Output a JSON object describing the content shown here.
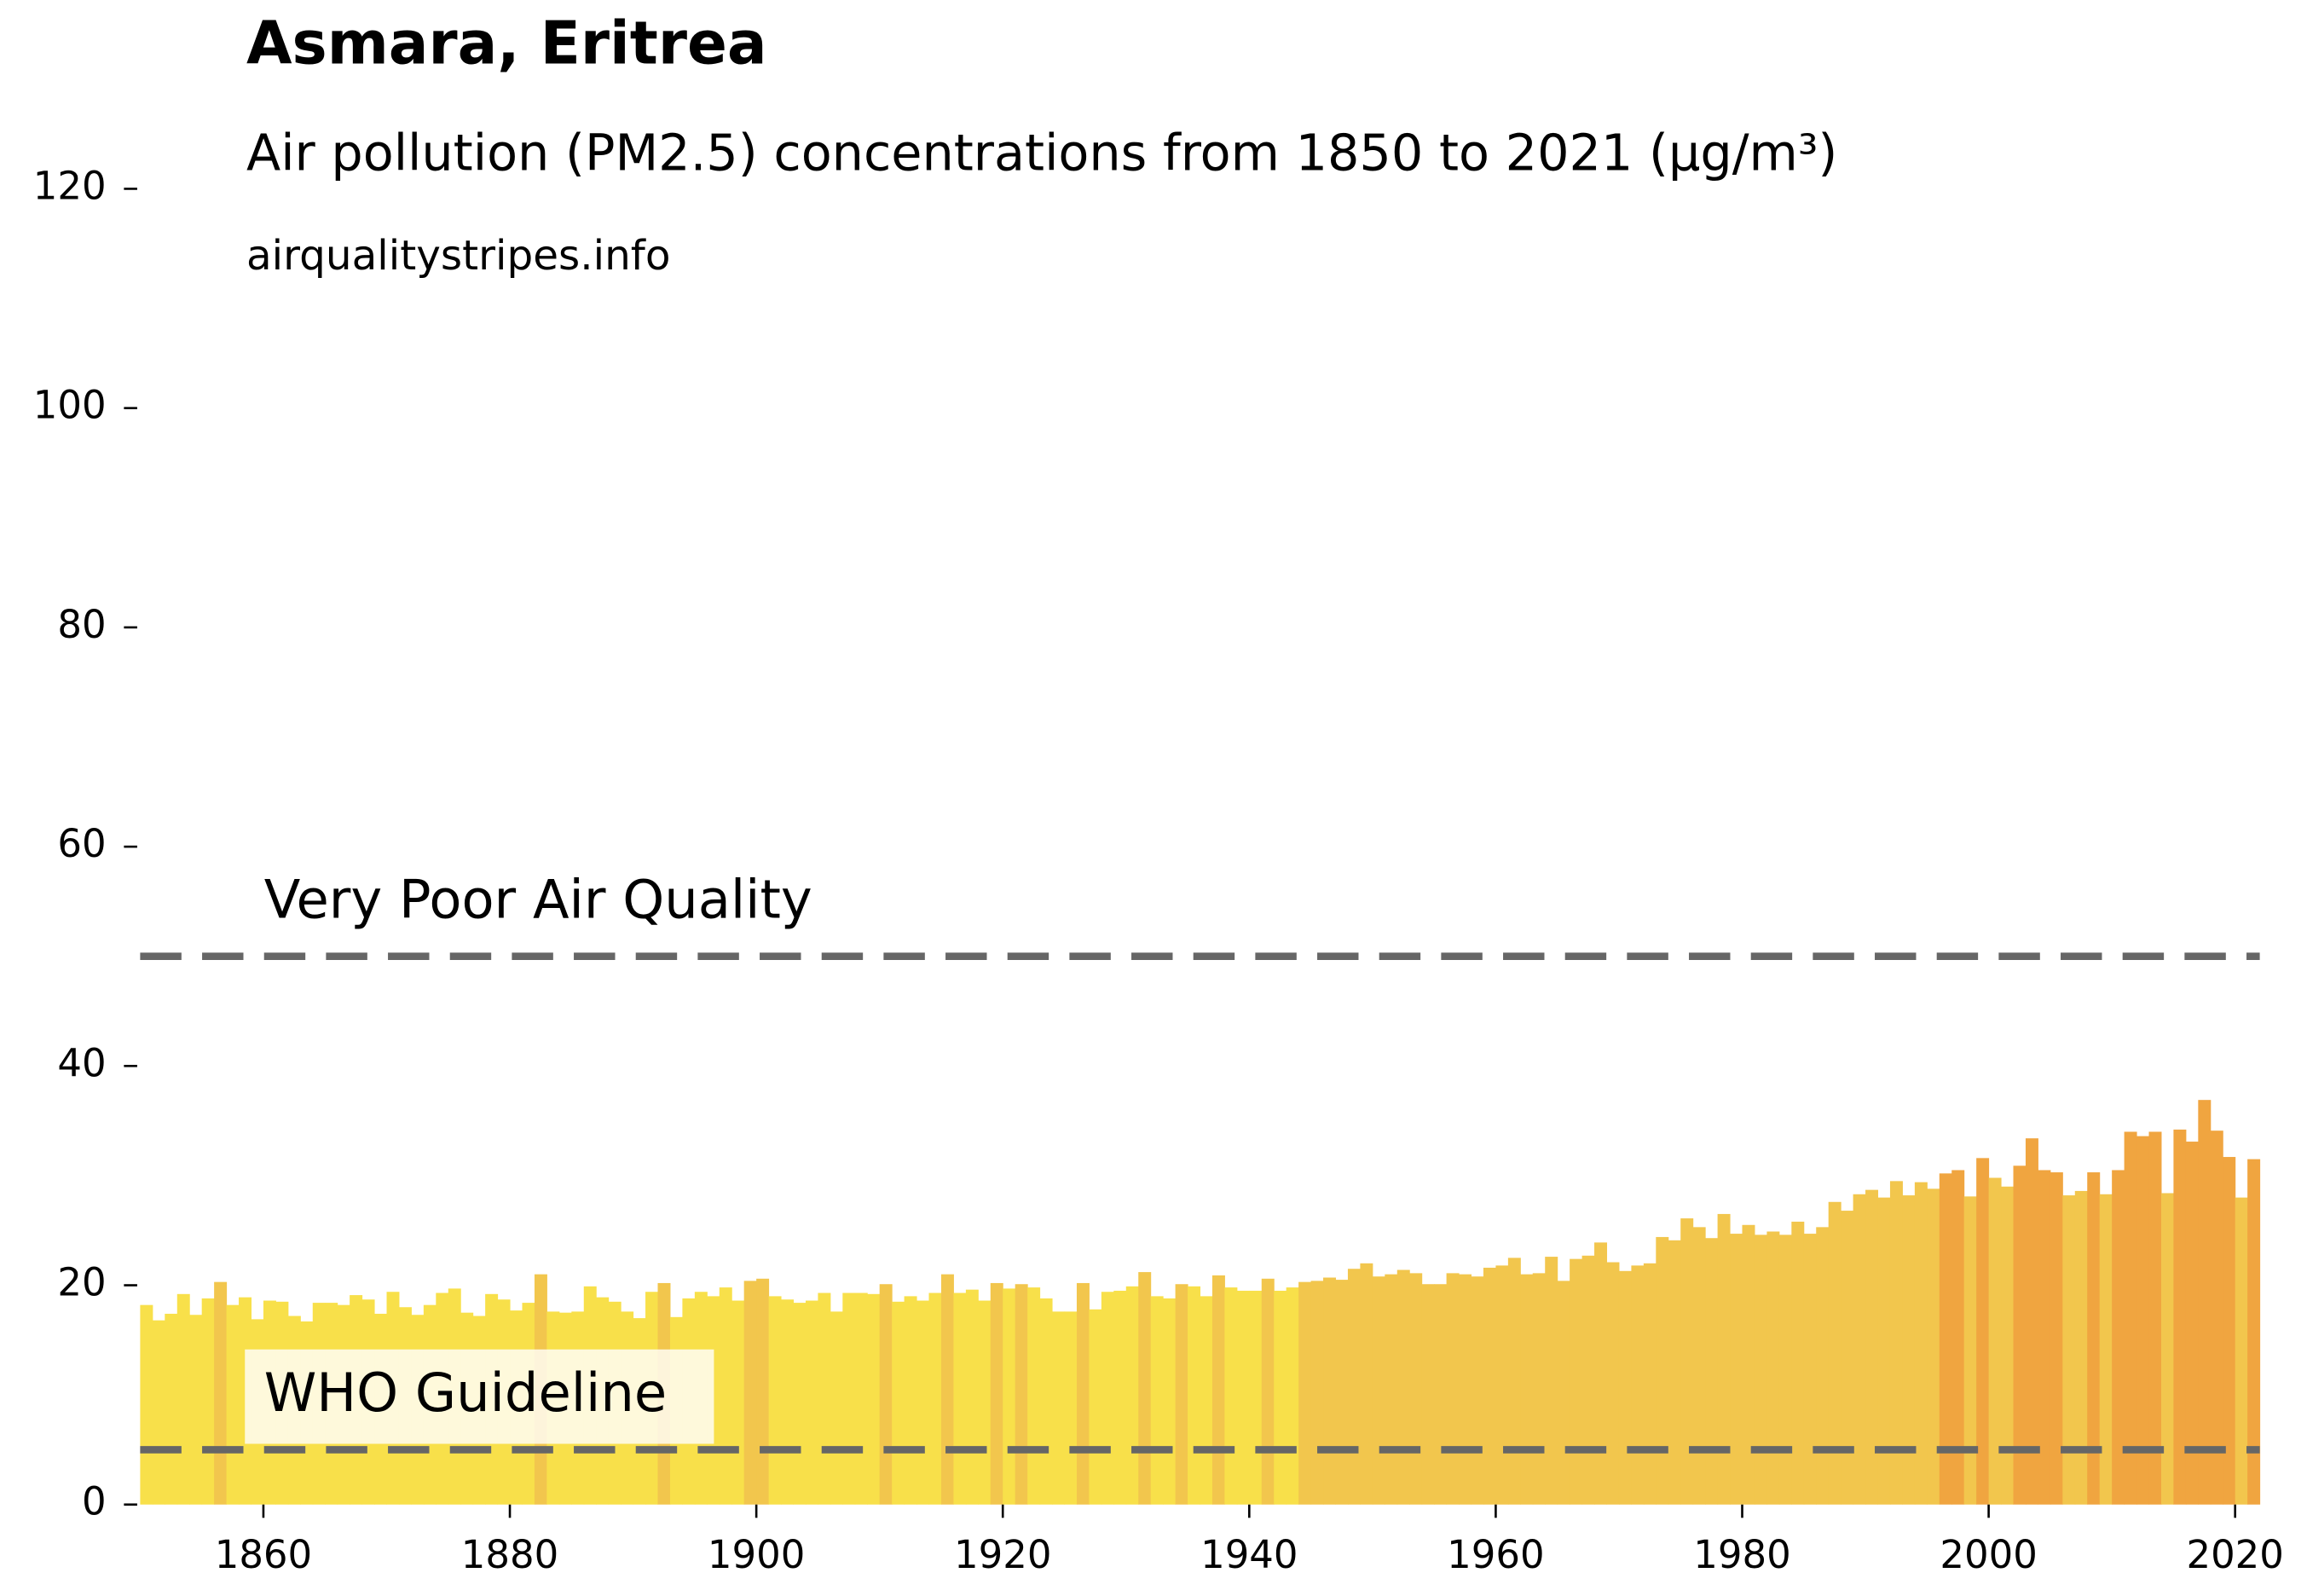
{
  "chart_data": {
    "type": "bar",
    "title": "Asmara, Eritrea",
    "subtitle": "Air pollution (PM2.5) concentrations from 1850 to 2021 (µg/m³)",
    "source": "airqualitystripes.info",
    "x": [
      1850,
      1851,
      1852,
      1853,
      1854,
      1855,
      1856,
      1857,
      1858,
      1859,
      1860,
      1861,
      1862,
      1863,
      1864,
      1865,
      1866,
      1867,
      1868,
      1869,
      1870,
      1871,
      1872,
      1873,
      1874,
      1875,
      1876,
      1877,
      1878,
      1879,
      1880,
      1881,
      1882,
      1883,
      1884,
      1885,
      1886,
      1887,
      1888,
      1889,
      1890,
      1891,
      1892,
      1893,
      1894,
      1895,
      1896,
      1897,
      1898,
      1899,
      1900,
      1901,
      1902,
      1903,
      1904,
      1905,
      1906,
      1907,
      1908,
      1909,
      1910,
      1911,
      1912,
      1913,
      1914,
      1915,
      1916,
      1917,
      1918,
      1919,
      1920,
      1921,
      1922,
      1923,
      1924,
      1925,
      1926,
      1927,
      1928,
      1929,
      1930,
      1931,
      1932,
      1933,
      1934,
      1935,
      1936,
      1937,
      1938,
      1939,
      1940,
      1941,
      1942,
      1943,
      1944,
      1945,
      1946,
      1947,
      1948,
      1949,
      1950,
      1951,
      1952,
      1953,
      1954,
      1955,
      1956,
      1957,
      1958,
      1959,
      1960,
      1961,
      1962,
      1963,
      1964,
      1965,
      1966,
      1967,
      1968,
      1969,
      1970,
      1971,
      1972,
      1973,
      1974,
      1975,
      1976,
      1977,
      1978,
      1979,
      1980,
      1981,
      1982,
      1983,
      1984,
      1985,
      1986,
      1987,
      1988,
      1989,
      1990,
      1991,
      1992,
      1993,
      1994,
      1995,
      1996,
      1997,
      1998,
      1999,
      2000,
      2001,
      2002,
      2003,
      2004,
      2005,
      2006,
      2007,
      2008,
      2009,
      2010,
      2011,
      2012,
      2013,
      2014,
      2015,
      2016,
      2017,
      2018,
      2019,
      2020,
      2021
    ],
    "values": [
      18.2,
      16.8,
      17.4,
      19.2,
      17.3,
      18.8,
      20.3,
      18.2,
      18.9,
      16.9,
      18.6,
      18.5,
      17.2,
      16.7,
      18.4,
      18.4,
      18.2,
      19.1,
      18.7,
      17.4,
      19.4,
      18.0,
      17.3,
      18.2,
      19.3,
      19.7,
      17.5,
      17.2,
      19.2,
      18.7,
      17.7,
      18.4,
      21.0,
      17.6,
      17.5,
      17.6,
      19.9,
      18.9,
      18.5,
      17.6,
      17.0,
      19.4,
      20.2,
      17.1,
      18.8,
      19.4,
      19.0,
      19.8,
      18.6,
      20.4,
      20.6,
      19.0,
      18.7,
      18.4,
      18.6,
      19.3,
      17.6,
      19.3,
      19.3,
      19.2,
      20.1,
      18.5,
      19.0,
      18.6,
      19.3,
      21.0,
      19.3,
      19.6,
      18.6,
      20.2,
      19.7,
      20.1,
      19.8,
      18.8,
      17.6,
      17.6,
      20.2,
      17.8,
      19.4,
      19.5,
      19.9,
      21.2,
      19.0,
      18.8,
      20.1,
      19.9,
      19.0,
      20.9,
      19.8,
      19.5,
      19.5,
      20.6,
      19.5,
      19.8,
      20.3,
      20.4,
      20.7,
      20.5,
      21.5,
      22.0,
      20.8,
      21.0,
      21.4,
      21.1,
      20.1,
      20.1,
      21.1,
      21.0,
      20.8,
      21.6,
      21.8,
      22.5,
      21.0,
      21.1,
      22.6,
      20.4,
      22.4,
      22.7,
      23.9,
      22.1,
      21.3,
      21.8,
      22.0,
      24.4,
      24.1,
      26.1,
      25.3,
      24.3,
      26.5,
      24.7,
      25.5,
      24.6,
      24.9,
      24.6,
      25.8,
      24.7,
      25.3,
      27.6,
      26.8,
      28.3,
      28.7,
      28.0,
      29.5,
      28.2,
      29.4,
      28.8,
      30.2,
      30.5,
      28.1,
      31.6,
      29.8,
      29.0,
      30.9,
      33.4,
      30.5,
      30.3,
      28.2,
      28.6,
      30.3,
      28.3,
      30.5,
      34.0,
      33.6,
      34.0,
      28.4,
      34.2,
      33.1,
      36.9,
      34.1,
      31.7,
      28.0,
      31.5
    ],
    "color_bins": {
      "edges": [
        20,
        30
      ],
      "colors": [
        "#f8e04a",
        "#f2c64d",
        "#f0a540"
      ]
    },
    "reference_lines": [
      {
        "value": 50,
        "label": "Very Poor Air Quality"
      },
      {
        "value": 5,
        "label": "WHO Guideline"
      }
    ],
    "xlim": [
      1850,
      2022
    ],
    "xticks": [
      1860,
      1880,
      1900,
      1920,
      1940,
      1960,
      1980,
      2000,
      2020
    ],
    "ylim": [
      0,
      120
    ],
    "yticks": [
      0,
      20,
      40,
      60,
      80,
      100,
      120
    ],
    "grid": false
  }
}
